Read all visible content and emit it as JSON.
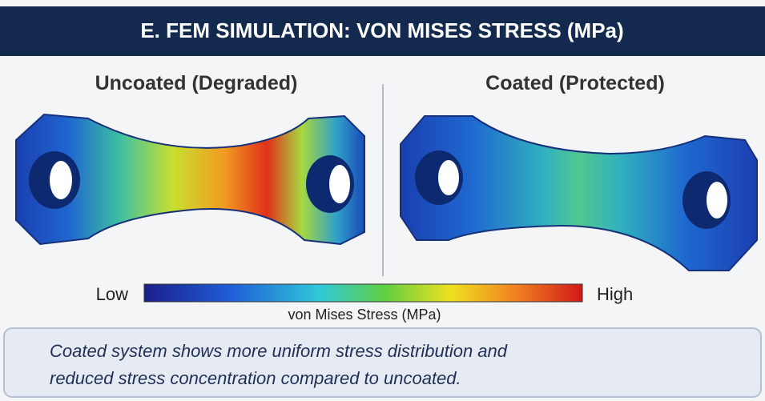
{
  "header": {
    "title": "E. FEM SIMULATION: VON MISES STRESS (MPa)"
  },
  "panels": [
    {
      "title": "Uncoated (Degraded)"
    },
    {
      "title": "Coated (Protected)"
    }
  ],
  "colorbar": {
    "low": "Low",
    "high": "High",
    "label": "von Mises Stress (MPa)"
  },
  "caption": {
    "lines": [
      "Coated system shows more uniform stress distribution and",
      "reduced stress concentration compared to uncoated."
    ]
  }
}
